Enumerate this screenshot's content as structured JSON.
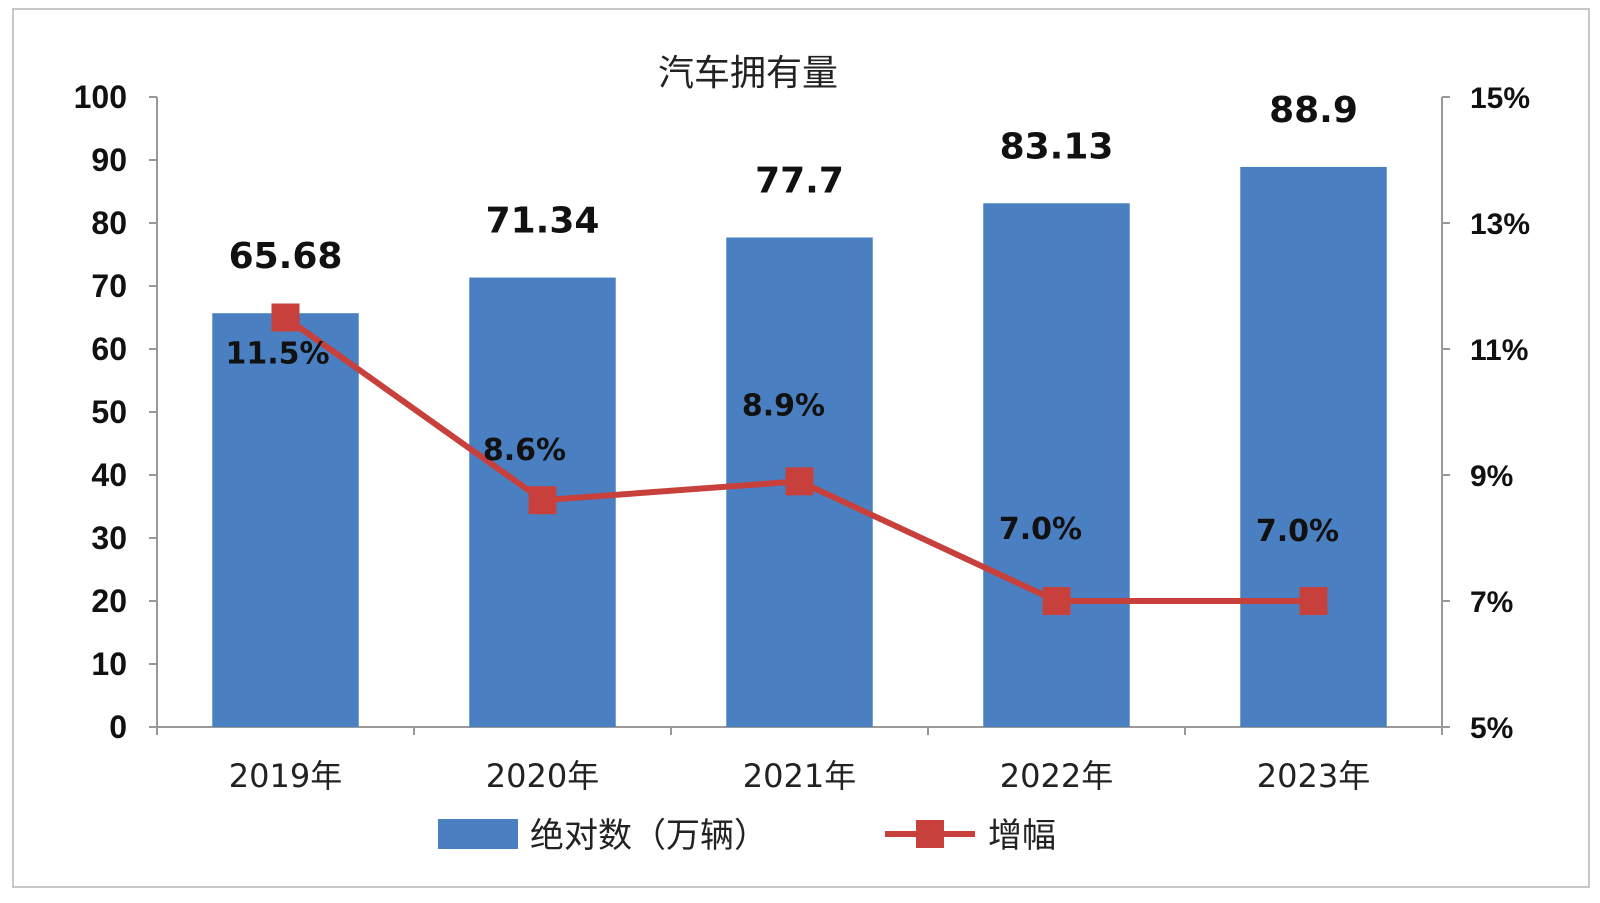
{
  "chart_data": {
    "type": "bar",
    "title": "汽车拥有量",
    "categories": [
      "2019年",
      "2020年",
      "2021年",
      "2022年",
      "2023年"
    ],
    "series": [
      {
        "name": "绝对数（万辆）",
        "type": "bar",
        "axis": "left",
        "values": [
          65.68,
          71.34,
          77.7,
          83.13,
          88.9
        ],
        "labels": [
          "65.68",
          "71.34",
          "77.7",
          "83.13",
          "88.9"
        ],
        "color": "#4a7fc1"
      },
      {
        "name": "增幅",
        "type": "line",
        "axis": "right",
        "values": [
          11.5,
          8.6,
          8.9,
          7.0,
          7.0
        ],
        "labels": [
          "11.5%",
          "8.6%",
          "8.9%",
          "7.0%",
          "7.0%"
        ],
        "color": "#c8403c"
      }
    ],
    "y_left": {
      "min": 0,
      "max": 100,
      "ticks": [
        "0",
        "10",
        "20",
        "30",
        "40",
        "50",
        "60",
        "70",
        "80",
        "90",
        "100"
      ]
    },
    "y_right": {
      "min": 5,
      "max": 15,
      "ticks": [
        "5%",
        "7%",
        "9%",
        "11%",
        "13%",
        "15%"
      ]
    },
    "grid": false,
    "legend_position": "bottom"
  }
}
